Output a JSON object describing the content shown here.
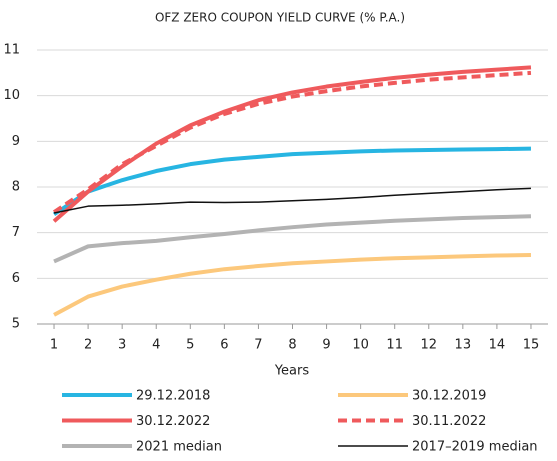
{
  "chart_data": {
    "type": "line",
    "title": "OFZ ZERO COUPON YIELD CURVE (% P.A.)",
    "x_label": "Years",
    "x": [
      1,
      2,
      3,
      4,
      5,
      6,
      7,
      8,
      9,
      10,
      11,
      12,
      13,
      14,
      15
    ],
    "xlim": [
      0.5,
      15.5
    ],
    "xticks": [
      1,
      2,
      3,
      4,
      5,
      6,
      7,
      8,
      9,
      10,
      11,
      12,
      13,
      14,
      15
    ],
    "ylim": [
      5,
      11
    ],
    "yticks": [
      5,
      6,
      7,
      8,
      9,
      10,
      11
    ],
    "grid": true,
    "series": [
      {
        "name": "29.12.2018",
        "color": "#27b5e2",
        "style": "solid",
        "values": [
          7.4,
          7.9,
          8.15,
          8.35,
          8.5,
          8.6,
          8.66,
          8.72,
          8.75,
          8.78,
          8.8,
          8.81,
          8.82,
          8.83,
          8.84
        ]
      },
      {
        "name": "30.12.2019",
        "color": "#fcc87c",
        "style": "solid",
        "values": [
          5.2,
          5.6,
          5.82,
          5.97,
          6.1,
          6.2,
          6.27,
          6.33,
          6.37,
          6.41,
          6.44,
          6.46,
          6.48,
          6.5,
          6.51
        ]
      },
      {
        "name": "30.12.2022",
        "color": "#ef5a5c",
        "style": "solid",
        "values": [
          7.25,
          7.9,
          8.45,
          8.95,
          9.35,
          9.65,
          9.9,
          10.07,
          10.2,
          10.3,
          10.39,
          10.46,
          10.52,
          10.57,
          10.62
        ]
      },
      {
        "name": "30.11.2022",
        "color": "#ef5a5c",
        "style": "dashed",
        "values": [
          7.45,
          7.95,
          8.5,
          8.9,
          9.3,
          9.6,
          9.82,
          9.98,
          10.1,
          10.2,
          10.28,
          10.35,
          10.4,
          10.45,
          10.5
        ]
      },
      {
        "name": "2021 median",
        "color": "#b3b3b3",
        "style": "solid",
        "values": [
          6.37,
          6.7,
          6.77,
          6.82,
          6.9,
          6.97,
          7.05,
          7.12,
          7.18,
          7.22,
          7.26,
          7.29,
          7.32,
          7.34,
          7.36
        ]
      },
      {
        "name": "2017–2019 median",
        "color": "#111111",
        "style": "thin",
        "values": [
          7.43,
          7.58,
          7.6,
          7.63,
          7.67,
          7.66,
          7.67,
          7.7,
          7.73,
          7.77,
          7.82,
          7.86,
          7.9,
          7.94,
          7.97
        ]
      }
    ]
  }
}
